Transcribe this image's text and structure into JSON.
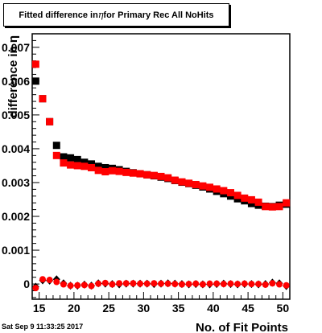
{
  "title": {
    "prefix": "Fitted difference in ",
    "symbol": "η",
    "suffix": " for Primary Rec All NoHits"
  },
  "timestamp": "Sat Sep  9 11:33:25 2017",
  "chart_data": {
    "type": "scatter",
    "xlabel": "No. of Fit Points",
    "ylabel": "difference in η",
    "xlim": [
      14,
      51
    ],
    "ylim": [
      -0.00045,
      0.0074
    ],
    "x_ticks": [
      15,
      20,
      25,
      30,
      35,
      40,
      45,
      50
    ],
    "x_tick_labels": [
      "15",
      "20",
      "25",
      "30",
      "35",
      "40",
      "45",
      "50"
    ],
    "y_ticks": [
      0,
      0.001,
      0.002,
      0.003,
      0.004,
      0.005,
      0.006,
      0.007
    ],
    "y_tick_labels": [
      "0",
      "0.001",
      "0.002",
      "0.003",
      "0.004",
      "0.005",
      "0.006",
      "0.007"
    ],
    "grid": false,
    "colors": {
      "black": "#000000",
      "red": "#ff0000"
    },
    "series": [
      {
        "marker": "square",
        "color": "#000000",
        "points": [
          [
            14.5,
            0.006
          ],
          [
            15.5,
            0.00548
          ],
          [
            16.5,
            0.0048
          ],
          [
            17.5,
            0.0041
          ],
          [
            18.5,
            0.00376
          ],
          [
            19.5,
            0.00373
          ],
          [
            20.5,
            0.00368
          ],
          [
            21.5,
            0.0036
          ],
          [
            22.5,
            0.00355
          ],
          [
            23.5,
            0.00348
          ],
          [
            24.5,
            0.00344
          ],
          [
            25.5,
            0.00342
          ],
          [
            26.5,
            0.00338
          ],
          [
            27.5,
            0.00333
          ],
          [
            28.5,
            0.00329
          ],
          [
            29.5,
            0.00326
          ],
          [
            30.5,
            0.00323
          ],
          [
            31.5,
            0.0032
          ],
          [
            32.5,
            0.00316
          ],
          [
            33.5,
            0.00312
          ],
          [
            34.5,
            0.00306
          ],
          [
            35.5,
            0.00301
          ],
          [
            36.5,
            0.00297
          ],
          [
            37.5,
            0.00292
          ],
          [
            38.5,
            0.00287
          ],
          [
            39.5,
            0.00281
          ],
          [
            40.5,
            0.00274
          ],
          [
            41.5,
            0.00267
          ],
          [
            42.5,
            0.0026
          ],
          [
            43.5,
            0.00252
          ],
          [
            44.5,
            0.00246
          ],
          [
            45.5,
            0.00238
          ],
          [
            46.5,
            0.00233
          ],
          [
            47.5,
            0.0023
          ],
          [
            48.5,
            0.00229
          ],
          [
            49.5,
            0.00233
          ],
          [
            50.5,
            0.00236
          ]
        ]
      },
      {
        "marker": "square",
        "color": "#ff0000",
        "points": [
          [
            14.5,
            0.0065
          ],
          [
            15.5,
            0.00548
          ],
          [
            16.5,
            0.0048
          ],
          [
            17.5,
            0.0038
          ],
          [
            18.5,
            0.00358
          ],
          [
            19.5,
            0.00352
          ],
          [
            20.5,
            0.0035
          ],
          [
            21.5,
            0.00348
          ],
          [
            22.5,
            0.00344
          ],
          [
            23.5,
            0.00336
          ],
          [
            24.5,
            0.00332
          ],
          [
            25.5,
            0.00335
          ],
          [
            26.5,
            0.00333
          ],
          [
            27.5,
            0.0033
          ],
          [
            28.5,
            0.00328
          ],
          [
            29.5,
            0.00326
          ],
          [
            30.5,
            0.00323
          ],
          [
            31.5,
            0.00321
          ],
          [
            32.5,
            0.00318
          ],
          [
            33.5,
            0.00314
          ],
          [
            34.5,
            0.00307
          ],
          [
            35.5,
            0.00302
          ],
          [
            36.5,
            0.00298
          ],
          [
            37.5,
            0.00294
          ],
          [
            38.5,
            0.0029
          ],
          [
            39.5,
            0.00286
          ],
          [
            40.5,
            0.00281
          ],
          [
            41.5,
            0.00276
          ],
          [
            42.5,
            0.0027
          ],
          [
            43.5,
            0.00262
          ],
          [
            44.5,
            0.00254
          ],
          [
            45.5,
            0.00249
          ],
          [
            46.5,
            0.00242
          ],
          [
            47.5,
            0.00229
          ],
          [
            48.5,
            0.00228
          ],
          [
            49.5,
            0.00229
          ],
          [
            50.5,
            0.0024
          ]
        ]
      },
      {
        "marker": "diamond",
        "color": "#000000",
        "points": [
          [
            14.5,
            -8e-05
          ],
          [
            15.5,
            0.00011
          ],
          [
            16.5,
            0.0001
          ],
          [
            17.5,
            0.00014
          ],
          [
            18.5,
            2e-05
          ],
          [
            19.5,
            -5e-05
          ],
          [
            20.5,
            -5e-05
          ],
          [
            21.5,
            -2e-05
          ],
          [
            22.5,
            -5e-05
          ],
          [
            23.5,
            2e-05
          ],
          [
            24.5,
            1e-05
          ],
          [
            25.5,
            0.0
          ],
          [
            26.5,
            -1e-05
          ],
          [
            27.5,
            1e-05
          ],
          [
            28.5,
            1e-05
          ],
          [
            29.5,
            1e-05
          ],
          [
            30.5,
            1e-05
          ],
          [
            31.5,
            0.0
          ],
          [
            32.5,
            1e-05
          ],
          [
            33.5,
            2e-05
          ],
          [
            34.5,
            1e-05
          ],
          [
            35.5,
            0.0
          ],
          [
            36.5,
            -1e-05
          ],
          [
            37.5,
            0.0
          ],
          [
            38.5,
            -1e-05
          ],
          [
            39.5,
            -1e-05
          ],
          [
            40.5,
            0.0
          ],
          [
            41.5,
            1e-05
          ],
          [
            42.5,
            0.0
          ],
          [
            43.5,
            -1e-05
          ],
          [
            44.5,
            0.0
          ],
          [
            45.5,
            0.0
          ],
          [
            46.5,
            -1e-05
          ],
          [
            47.5,
            0.0
          ],
          [
            48.5,
            4e-05
          ],
          [
            49.5,
            2e-05
          ],
          [
            50.5,
            -6e-05
          ]
        ]
      },
      {
        "marker": "circle",
        "color": "#ff0000",
        "points": [
          [
            14.5,
            -0.00012
          ],
          [
            15.5,
            0.00014
          ],
          [
            16.5,
            0.00012
          ],
          [
            17.5,
            6e-05
          ],
          [
            18.5,
            -1e-05
          ],
          [
            19.5,
            -5e-05
          ],
          [
            20.5,
            -4e-05
          ],
          [
            21.5,
            -3e-05
          ],
          [
            22.5,
            -6e-05
          ],
          [
            23.5,
            1e-05
          ],
          [
            24.5,
            3e-05
          ],
          [
            25.5,
            -1e-05
          ],
          [
            26.5,
            2e-05
          ],
          [
            27.5,
            2e-05
          ],
          [
            28.5,
            2e-05
          ],
          [
            29.5,
            1e-05
          ],
          [
            30.5,
            1e-05
          ],
          [
            31.5,
            2e-05
          ],
          [
            32.5,
            1e-05
          ],
          [
            33.5,
            1e-05
          ],
          [
            34.5,
            0.0
          ],
          [
            35.5,
            -1e-05
          ],
          [
            36.5,
            0.0
          ],
          [
            37.5,
            1e-05
          ],
          [
            38.5,
            -1e-05
          ],
          [
            39.5,
            1e-05
          ],
          [
            40.5,
            1e-05
          ],
          [
            41.5,
            0.0
          ],
          [
            42.5,
            1e-05
          ],
          [
            43.5,
            0.0
          ],
          [
            44.5,
            1e-05
          ],
          [
            45.5,
            0.0
          ],
          [
            46.5,
            0.0
          ],
          [
            47.5,
            -2e-05
          ],
          [
            48.5,
            2e-05
          ],
          [
            49.5,
            -1e-05
          ],
          [
            50.5,
            -4e-05
          ]
        ]
      }
    ]
  }
}
